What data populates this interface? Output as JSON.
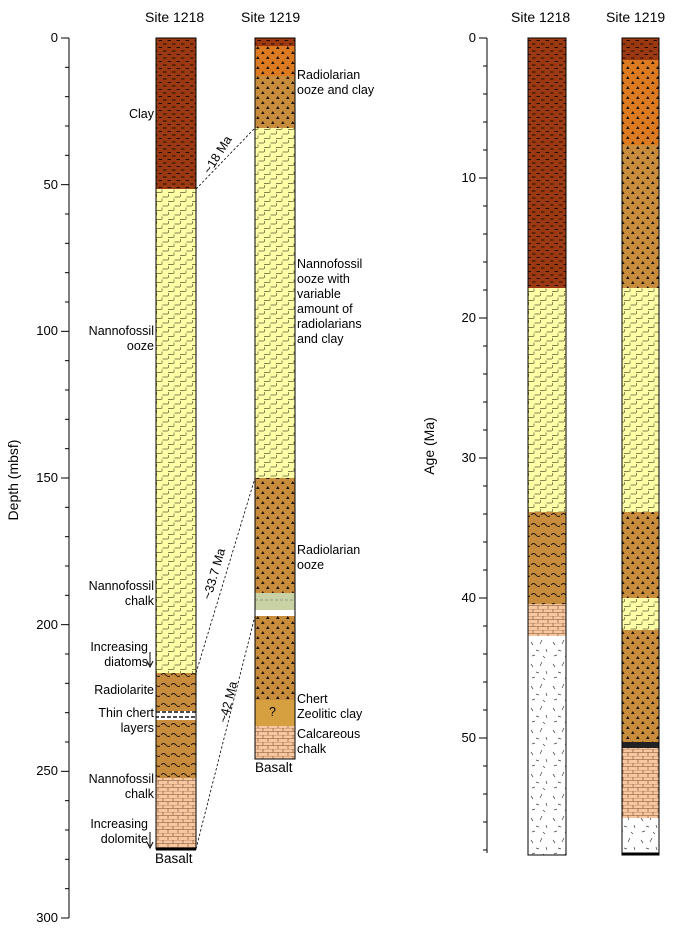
{
  "left_panel": {
    "headers": {
      "site1218": "Site 1218",
      "site1219": "Site 1219"
    },
    "axis": {
      "label": "Depth (mbsf)",
      "ticks": [
        "0",
        "50",
        "100",
        "150",
        "200",
        "250",
        "300"
      ]
    },
    "site1218_labels": [
      "Clay",
      "Nannofossil\nooze",
      "Nannofossil\nchalk",
      "Increasing\ndiatoms",
      "Radiolarite",
      "Thin chert\nlayers",
      "Nannofossil\nchalk",
      "Increasing\ndolomite",
      "Basalt"
    ],
    "site1219_labels": [
      "Radiolarian\nooze and clay",
      "Nannofossil\nooze with\nvariable\namount of\nradiolarians\nand clay",
      "Radiolarian\nooze",
      "Chert",
      "Zeolitic clay",
      "Calcareous\nchalk",
      "Basalt"
    ],
    "question_mark": "?",
    "correlations": [
      "~18 Ma",
      "~33.7 Ma",
      "~42 Ma"
    ]
  },
  "right_panel": {
    "headers": {
      "site1218": "Site 1218",
      "site1219": "Site 1219"
    },
    "axis": {
      "label": "Age (Ma)",
      "ticks": [
        "0",
        "10",
        "20",
        "30",
        "40",
        "50"
      ]
    }
  },
  "colors": {
    "clay": "#9b3a12",
    "nannofossil_ooze": "#ffffa8",
    "radiolarian": "#c78c3c",
    "radiolarian_orange": "#dc7a22",
    "chalk_dolomite": "#f7c7a2",
    "zeolitic": "#d6a040",
    "green_layer": "#c9d2a4",
    "basalt_white": "#ffffff"
  }
}
